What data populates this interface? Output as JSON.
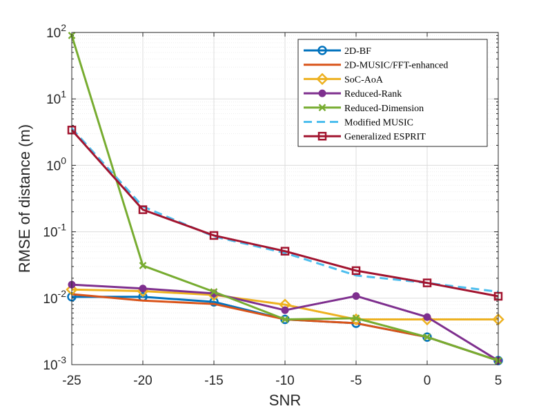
{
  "chart_data": {
    "type": "line",
    "title": "",
    "xlabel": "SNR",
    "ylabel": "RMSE of distance (m)",
    "yscale": "log",
    "xlim": [
      -25,
      5
    ],
    "ylim": [
      0.001,
      100
    ],
    "grid": true,
    "legend_position": "top-right",
    "x": [
      -25,
      -20,
      -15,
      -10,
      -5,
      0,
      5
    ],
    "x_tick_labels": [
      "-25",
      "-20",
      "-15",
      "-10",
      "-5",
      "0",
      "5"
    ],
    "y_ticks": [
      {
        "base": "10",
        "exp": "-3",
        "value": 0.001
      },
      {
        "base": "10",
        "exp": "-2",
        "value": 0.01
      },
      {
        "base": "10",
        "exp": "-1",
        "value": 0.1
      },
      {
        "base": "10",
        "exp": "0",
        "value": 1
      },
      {
        "base": "10",
        "exp": "1",
        "value": 10
      },
      {
        "base": "10",
        "exp": "2",
        "value": 100
      }
    ],
    "series": [
      {
        "name": "2D-BF",
        "color": "#0072BD",
        "marker": "circle",
        "dash": "solid",
        "values": [
          0.0105,
          0.0105,
          0.0088,
          0.0048,
          0.0042,
          0.0026,
          0.00115
        ]
      },
      {
        "name": "2D-MUSIC/FFT-enhanced",
        "color": "#D95319",
        "marker": "none",
        "dash": "solid",
        "values": [
          0.0115,
          0.0092,
          0.0082,
          0.0048,
          0.0042,
          0.0026,
          0.00115
        ]
      },
      {
        "name": "SoC-AoA",
        "color": "#EDB120",
        "marker": "diamond",
        "dash": "solid",
        "values": [
          0.0135,
          0.0128,
          0.0112,
          0.008,
          0.0048,
          0.0048,
          0.0048
        ]
      },
      {
        "name": "Reduced-Rank",
        "color": "#7E2F8E",
        "marker": "filled-circle",
        "dash": "solid",
        "values": [
          0.016,
          0.014,
          0.0118,
          0.0066,
          0.0108,
          0.0052,
          0.00115
        ]
      },
      {
        "name": "Reduced-Dimension",
        "color": "#77AC30",
        "marker": "x",
        "dash": "solid",
        "values": [
          90,
          0.031,
          0.0125,
          0.0048,
          0.005,
          0.0026,
          0.00115
        ]
      },
      {
        "name": "Modified MUSIC",
        "color": "#4DBEEE",
        "marker": "none",
        "dash": "dashed",
        "values": [
          3.6,
          0.24,
          0.085,
          0.048,
          0.022,
          0.017,
          0.0125
        ]
      },
      {
        "name": "Generalized ESPRIT",
        "color": "#A2142F",
        "marker": "square",
        "dash": "solid",
        "values": [
          3.4,
          0.215,
          0.088,
          0.051,
          0.026,
          0.017,
          0.0107
        ]
      }
    ]
  }
}
